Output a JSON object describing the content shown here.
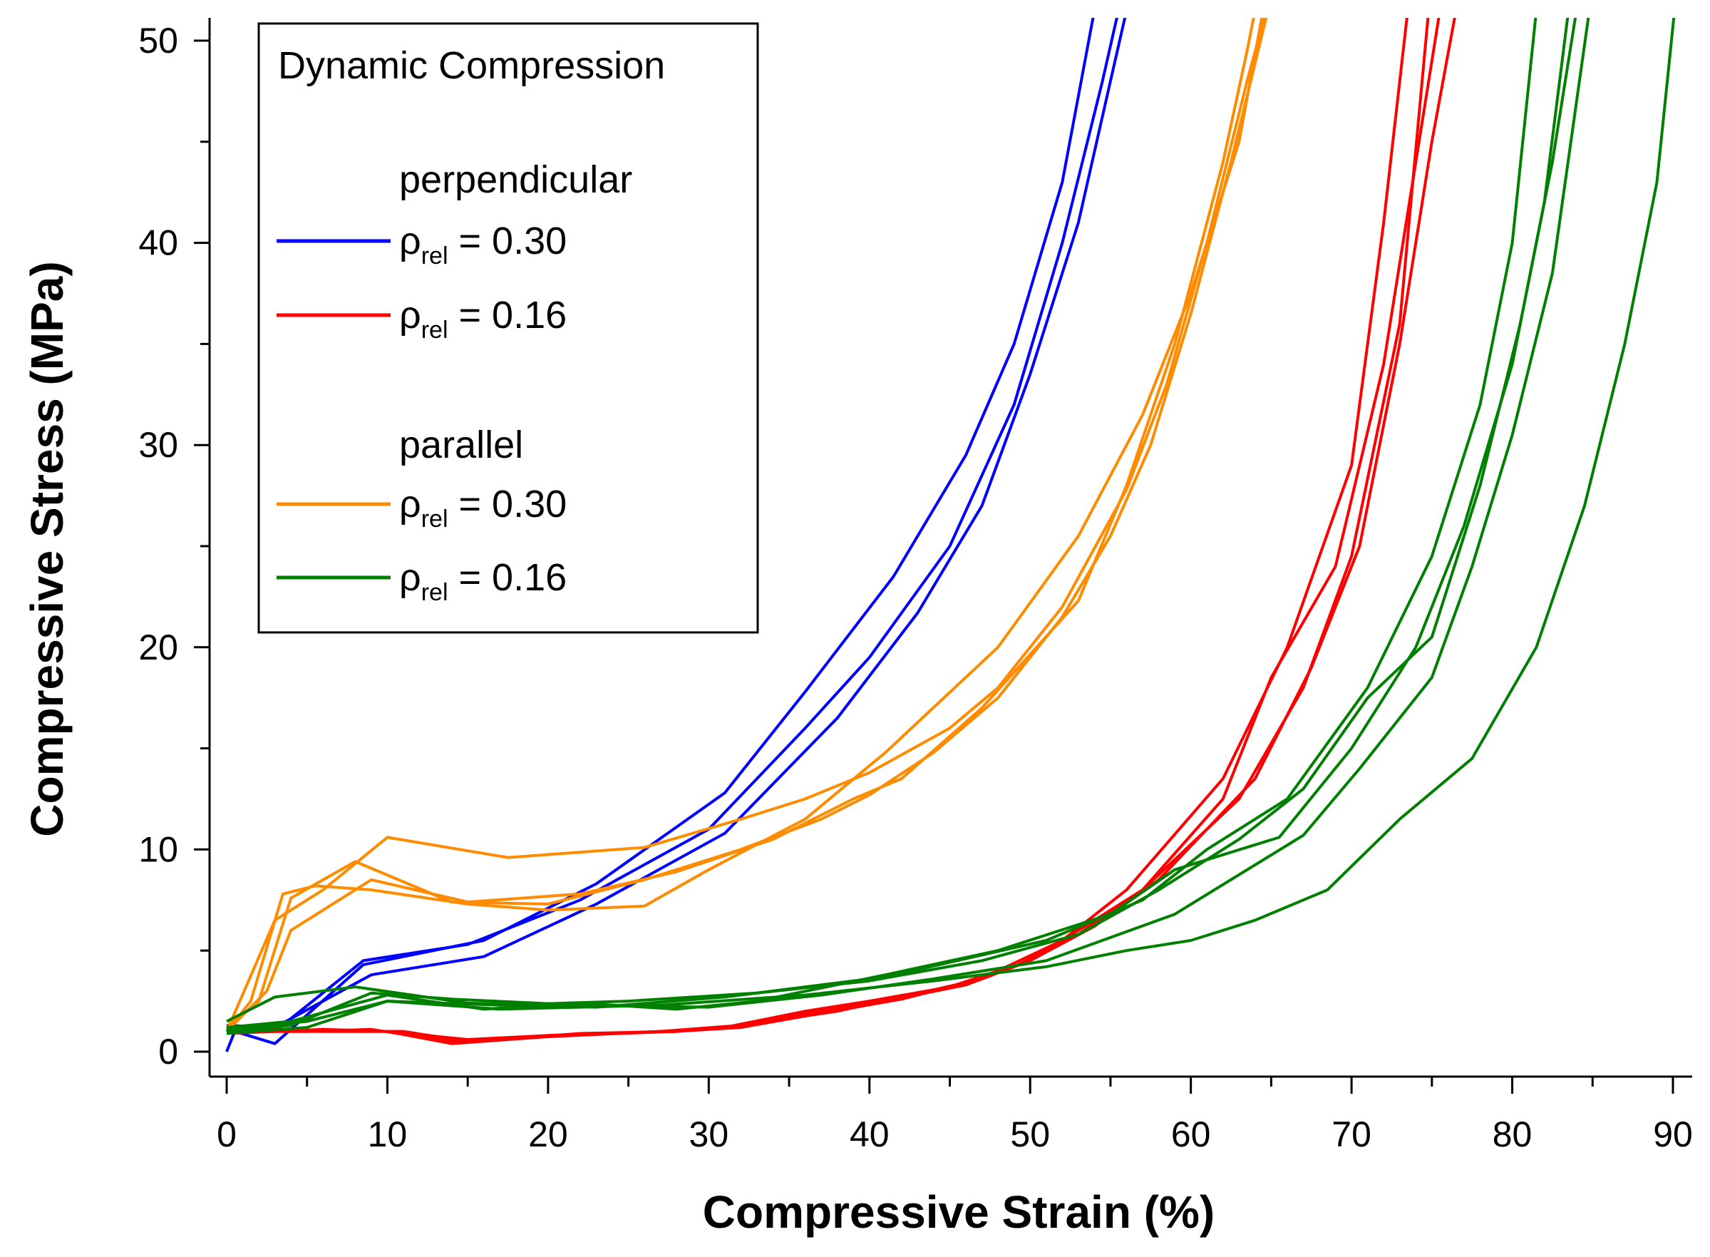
{
  "chart_data": {
    "type": "line",
    "title": "",
    "xlabel": "Compressive Strain (%)",
    "ylabel": "Compressive Stress (MPa)",
    "xlim": [
      -1.5,
      91.5
    ],
    "ylim": [
      -1.5,
      51.5
    ],
    "x_ticks": [
      "0",
      "10",
      "20",
      "30",
      "40",
      "50",
      "60",
      "70",
      "80",
      "90"
    ],
    "y_ticks": [
      "0",
      "10",
      "20",
      "30",
      "40",
      "50"
    ],
    "grid": false,
    "legend": {
      "position": "top-left",
      "title": "Dynamic Compression",
      "groups": [
        {
          "label": "perpendicular",
          "entries": [
            {
              "symbol": "ρ",
              "subscript": "rel",
              "text": " = 0.30",
              "color": "#0000ff"
            },
            {
              "symbol": "ρ",
              "subscript": "rel",
              "text": " = 0.16",
              "color": "#ff0000"
            }
          ]
        },
        {
          "label": "parallel",
          "entries": [
            {
              "symbol": "ρ",
              "subscript": "rel",
              "text": " = 0.30",
              "color": "#ff8c00"
            },
            {
              "symbol": "ρ",
              "subscript": "rel",
              "text": " = 0.16",
              "color": "#008000"
            }
          ]
        }
      ]
    },
    "series": [
      {
        "group": "perpendicular 0.30",
        "color": "#0000ff",
        "points": [
          [
            0,
            0
          ],
          [
            0.5,
            1
          ],
          [
            3,
            0.4
          ],
          [
            8.5,
            4.3
          ],
          [
            16,
            5.5
          ],
          [
            23,
            8.3
          ],
          [
            31,
            12.8
          ],
          [
            36,
            17.8
          ],
          [
            41.5,
            23.5
          ],
          [
            46,
            29.5
          ],
          [
            49,
            35
          ],
          [
            52,
            43
          ],
          [
            54,
            51.5
          ]
        ]
      },
      {
        "group": "perpendicular 0.30",
        "color": "#0000ff",
        "points": [
          [
            0,
            1.3
          ],
          [
            3,
            1.2
          ],
          [
            9,
            3.8
          ],
          [
            16,
            4.7
          ],
          [
            23,
            7.3
          ],
          [
            31,
            10.8
          ],
          [
            38,
            16.5
          ],
          [
            43,
            21.7
          ],
          [
            47,
            27
          ],
          [
            50,
            33.5
          ],
          [
            53,
            41
          ],
          [
            55,
            48
          ],
          [
            56,
            51.5
          ]
        ]
      },
      {
        "group": "perpendicular 0.30",
        "color": "#0000ff",
        "points": [
          [
            0,
            1.2
          ],
          [
            3,
            1
          ],
          [
            8.5,
            4.5
          ],
          [
            15,
            5.3
          ],
          [
            22,
            7.5
          ],
          [
            30,
            11
          ],
          [
            36,
            16
          ],
          [
            40,
            19.5
          ],
          [
            45,
            25
          ],
          [
            49,
            32
          ],
          [
            52,
            40
          ],
          [
            54.5,
            48
          ],
          [
            55.5,
            51.5
          ]
        ]
      },
      {
        "group": "perpendicular 0.16",
        "color": "#ff0000",
        "points": [
          [
            0,
            1
          ],
          [
            5,
            1
          ],
          [
            9,
            1.1
          ],
          [
            14,
            0.5
          ],
          [
            19,
            0.7
          ],
          [
            27,
            1
          ],
          [
            31,
            1.2
          ],
          [
            36,
            2
          ],
          [
            40,
            2.5
          ],
          [
            45,
            3.2
          ],
          [
            48,
            4
          ],
          [
            52,
            5.5
          ],
          [
            56,
            8
          ],
          [
            62,
            13.5
          ],
          [
            66,
            20
          ],
          [
            70,
            29
          ],
          [
            72,
            41
          ],
          [
            73.5,
            51.5
          ]
        ]
      },
      {
        "group": "perpendicular 0.16",
        "color": "#ff0000",
        "points": [
          [
            0,
            1.2
          ],
          [
            6,
            1
          ],
          [
            10,
            1
          ],
          [
            15,
            0.6
          ],
          [
            20,
            0.8
          ],
          [
            27,
            1
          ],
          [
            32,
            1.3
          ],
          [
            37,
            2
          ],
          [
            41,
            2.5
          ],
          [
            46,
            3.3
          ],
          [
            49,
            4.2
          ],
          [
            53,
            5.8
          ],
          [
            57,
            8
          ],
          [
            63,
            12.5
          ],
          [
            67,
            18
          ],
          [
            70,
            24.5
          ],
          [
            73,
            36
          ],
          [
            74.8,
            51.5
          ]
        ]
      },
      {
        "group": "perpendicular 0.16",
        "color": "#ff0000",
        "points": [
          [
            0,
            0.9
          ],
          [
            6,
            1.1
          ],
          [
            10,
            1
          ],
          [
            14,
            0.4
          ],
          [
            21,
            0.8
          ],
          [
            28,
            1
          ],
          [
            32,
            1.2
          ],
          [
            37,
            1.9
          ],
          [
            42,
            2.6
          ],
          [
            46,
            3.4
          ],
          [
            50,
            4.5
          ],
          [
            53,
            6
          ],
          [
            57,
            8
          ],
          [
            62,
            12.5
          ],
          [
            65,
            18.5
          ],
          [
            69,
            24
          ],
          [
            72,
            34
          ],
          [
            74,
            44
          ],
          [
            75.5,
            51.5
          ]
        ]
      },
      {
        "group": "perpendicular 0.16",
        "color": "#ff0000",
        "points": [
          [
            0,
            1
          ],
          [
            6,
            1
          ],
          [
            11,
            1
          ],
          [
            15,
            0.5
          ],
          [
            22,
            0.9
          ],
          [
            28,
            1
          ],
          [
            32,
            1.3
          ],
          [
            38,
            2
          ],
          [
            42,
            2.7
          ],
          [
            47,
            3.6
          ],
          [
            50,
            4.5
          ],
          [
            54,
            6.2
          ],
          [
            58,
            8.5
          ],
          [
            64,
            13.5
          ],
          [
            67.5,
            19
          ],
          [
            70.5,
            25
          ],
          [
            73,
            35
          ],
          [
            75,
            45
          ],
          [
            76.5,
            51.5
          ]
        ]
      },
      {
        "group": "parallel 0.30",
        "color": "#ff8c00",
        "points": [
          [
            0,
            1
          ],
          [
            1.5,
            2.5
          ],
          [
            3.5,
            7.8
          ],
          [
            5.5,
            8.2
          ],
          [
            9,
            8
          ],
          [
            15,
            7.3
          ],
          [
            20,
            7
          ],
          [
            26,
            7.2
          ],
          [
            30,
            9
          ],
          [
            36,
            11.5
          ],
          [
            41,
            14.8
          ],
          [
            48,
            20
          ],
          [
            53,
            25.5
          ],
          [
            57,
            31.5
          ],
          [
            60,
            37.5
          ],
          [
            63,
            45
          ],
          [
            64.5,
            51.5
          ]
        ]
      },
      {
        "group": "parallel 0.30",
        "color": "#ff8c00",
        "points": [
          [
            0,
            1
          ],
          [
            3,
            6.5
          ],
          [
            6,
            8
          ],
          [
            10,
            10.6
          ],
          [
            17.5,
            9.6
          ],
          [
            26,
            10.1
          ],
          [
            32,
            11.5
          ],
          [
            36,
            12.5
          ],
          [
            40,
            13.8
          ],
          [
            45,
            16
          ],
          [
            48,
            18
          ],
          [
            52,
            22
          ],
          [
            56,
            27.8
          ],
          [
            58.5,
            33
          ],
          [
            61,
            40
          ],
          [
            63.5,
            48
          ],
          [
            64.7,
            51.5
          ]
        ]
      },
      {
        "group": "parallel 0.30",
        "color": "#ff8c00",
        "points": [
          [
            0,
            1.2
          ],
          [
            2,
            2.5
          ],
          [
            4,
            7.6
          ],
          [
            8,
            9.4
          ],
          [
            14,
            7.4
          ],
          [
            20,
            7.3
          ],
          [
            26,
            8.5
          ],
          [
            32,
            10
          ],
          [
            37,
            11.5
          ],
          [
            40,
            12.7
          ],
          [
            44,
            14.8
          ],
          [
            48,
            17.5
          ],
          [
            52,
            21.5
          ],
          [
            55,
            25.5
          ],
          [
            57.5,
            30
          ],
          [
            60,
            36.5
          ],
          [
            62.5,
            44
          ],
          [
            64.8,
            51.5
          ]
        ]
      },
      {
        "group": "parallel 0.30",
        "color": "#ff8c00",
        "points": [
          [
            0,
            1
          ],
          [
            2.5,
            3
          ],
          [
            4,
            6
          ],
          [
            9,
            8.5
          ],
          [
            15,
            7.4
          ],
          [
            22,
            7.8
          ],
          [
            28,
            8.9
          ],
          [
            34,
            10.5
          ],
          [
            39,
            12.5
          ],
          [
            42,
            13.5
          ],
          [
            47,
            17
          ],
          [
            53,
            22.3
          ],
          [
            56,
            28
          ],
          [
            59,
            35
          ],
          [
            62,
            44
          ],
          [
            63.5,
            49.5
          ],
          [
            64,
            51.5
          ]
        ]
      },
      {
        "group": "parallel 0.16",
        "color": "#008000",
        "points": [
          [
            0,
            1.5
          ],
          [
            3,
            2.7
          ],
          [
            8,
            3.2
          ],
          [
            15,
            2.4
          ],
          [
            23,
            2.2
          ],
          [
            31,
            2.7
          ],
          [
            41,
            3.7
          ],
          [
            51,
            5.5
          ],
          [
            57,
            7.5
          ],
          [
            61,
            10
          ],
          [
            66,
            12.5
          ],
          [
            71,
            18
          ],
          [
            75,
            24.5
          ],
          [
            78,
            32
          ],
          [
            80,
            40
          ],
          [
            81.5,
            51.5
          ]
        ]
      },
      {
        "group": "parallel 0.16",
        "color": "#008000",
        "points": [
          [
            0,
            1.2
          ],
          [
            4,
            1.5
          ],
          [
            10,
            2.8
          ],
          [
            16,
            2.1
          ],
          [
            22,
            2.4
          ],
          [
            28,
            2.1
          ],
          [
            33,
            2.5
          ],
          [
            41,
            3.8
          ],
          [
            48,
            5
          ],
          [
            55,
            6.8
          ],
          [
            59,
            9
          ],
          [
            65.5,
            10.6
          ],
          [
            70,
            15
          ],
          [
            74,
            20
          ],
          [
            77,
            26
          ],
          [
            80,
            34
          ],
          [
            82,
            42
          ],
          [
            83.5,
            51.5
          ]
        ]
      },
      {
        "group": "parallel 0.16",
        "color": "#008000",
        "points": [
          [
            0,
            0.9
          ],
          [
            5,
            1.2
          ],
          [
            10,
            2.5
          ],
          [
            17,
            2.3
          ],
          [
            25,
            2.5
          ],
          [
            33,
            2.9
          ],
          [
            40,
            3.5
          ],
          [
            47,
            4.5
          ],
          [
            53,
            5.8
          ],
          [
            58,
            8
          ],
          [
            63,
            10.5
          ],
          [
            67,
            13
          ],
          [
            71,
            17.5
          ],
          [
            75,
            20.5
          ],
          [
            78,
            28
          ],
          [
            80.5,
            36
          ],
          [
            82.5,
            44
          ],
          [
            84,
            51.5
          ]
        ]
      },
      {
        "group": "parallel 0.16",
        "color": "#008000",
        "points": [
          [
            0,
            1
          ],
          [
            4,
            1.3
          ],
          [
            9,
            2.9
          ],
          [
            14,
            2.6
          ],
          [
            22,
            2.3
          ],
          [
            30,
            2.2
          ],
          [
            37,
            2.8
          ],
          [
            44,
            3.6
          ],
          [
            51,
            4.5
          ],
          [
            59,
            6.8
          ],
          [
            67,
            10.7
          ],
          [
            70.5,
            14
          ],
          [
            75,
            18.5
          ],
          [
            77.5,
            24
          ],
          [
            80,
            30.5
          ],
          [
            82.5,
            38.5
          ],
          [
            84.8,
            51.5
          ]
        ]
      },
      {
        "group": "parallel 0.16",
        "color": "#008000",
        "points": [
          [
            0,
            1.1
          ],
          [
            5,
            1.5
          ],
          [
            10,
            2.5
          ],
          [
            17,
            2.1
          ],
          [
            27,
            2.3
          ],
          [
            36,
            2.8
          ],
          [
            44,
            3.5
          ],
          [
            51,
            4.2
          ],
          [
            56,
            5
          ],
          [
            60,
            5.5
          ],
          [
            64,
            6.5
          ],
          [
            68.5,
            8
          ],
          [
            73,
            11.5
          ],
          [
            77.5,
            14.5
          ],
          [
            81.5,
            20
          ],
          [
            84.5,
            27
          ],
          [
            87,
            35
          ],
          [
            89,
            43
          ],
          [
            90.1,
            51.5
          ]
        ]
      }
    ]
  }
}
